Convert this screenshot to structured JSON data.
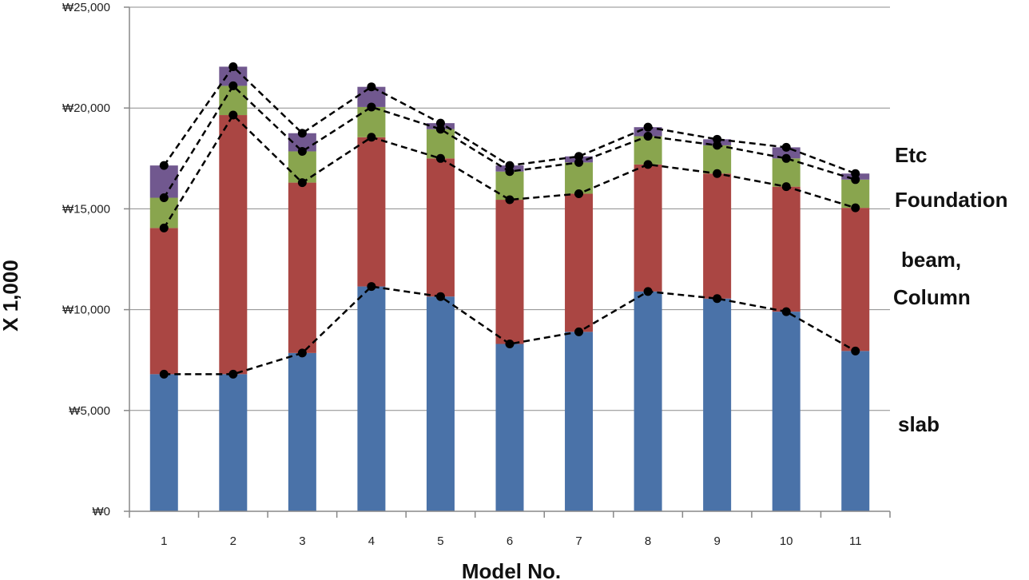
{
  "chart_data": {
    "type": "bar",
    "stacked": true,
    "categories": [
      "1",
      "2",
      "3",
      "4",
      "5",
      "6",
      "7",
      "8",
      "9",
      "10",
      "11"
    ],
    "series": [
      {
        "name": "slab",
        "color": "#4a72a8",
        "values": [
          6800,
          6800,
          7850,
          11150,
          10650,
          8300,
          8900,
          10900,
          10550,
          9900,
          7950
        ]
      },
      {
        "name": "beam, Column",
        "color": "#aa4643",
        "values": [
          7250,
          12850,
          8450,
          7400,
          6850,
          7150,
          6850,
          6300,
          6200,
          6200,
          7100
        ]
      },
      {
        "name": "Foundation",
        "color": "#89a54e",
        "values": [
          1500,
          1450,
          1550,
          1500,
          1450,
          1400,
          1550,
          1400,
          1400,
          1400,
          1400
        ]
      },
      {
        "name": "Etc",
        "color": "#71588f",
        "values": [
          1600,
          950,
          900,
          1000,
          300,
          300,
          300,
          450,
          300,
          550,
          300
        ]
      }
    ],
    "ylabel": "X 1,000",
    "xlabel": "Model No.",
    "ylim": [
      0,
      25000
    ],
    "yticks": [
      "₩0",
      "₩5,000",
      "₩10,000",
      "₩15,000",
      "₩20,000",
      "₩25,000"
    ],
    "grid": true,
    "cumulative_lines": {
      "style": "dashed",
      "color": "#000000",
      "markers": "circle"
    },
    "legend_labels": [
      "Etc",
      "Foundation",
      "beam,",
      "Column",
      "slab"
    ]
  }
}
